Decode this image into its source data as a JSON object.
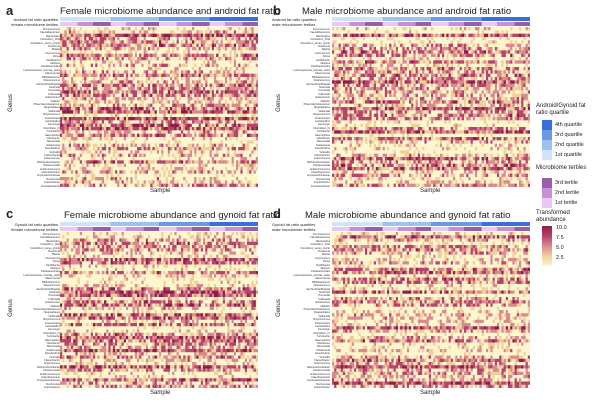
{
  "panels": [
    {
      "letter": "a",
      "title": "Female microbiome abundance and android fat ratio",
      "strip1": "Android fat ratio quartiles",
      "strip2": "female microbiome tertiles",
      "ylabel": "Genus",
      "xlabel": "Sample"
    },
    {
      "letter": "b",
      "title": "Male microbiome abundance and android fat ratio",
      "strip1": "Android fat ratio quartiles",
      "strip2": "male microbiome tertiles",
      "ylabel": "Genus",
      "xlabel": "Sample"
    },
    {
      "letter": "c",
      "title": "Female microbiome abundance and gynoid fat ratio",
      "strip1": "Gynoid fat ratio quartiles",
      "strip2": "female microbiome tertiles",
      "ylabel": "Genus",
      "xlabel": "Sample"
    },
    {
      "letter": "d",
      "title": "Male microbiome abundance and gynoid fat ratio",
      "strip1": "Gynoid fat ratio quartiles",
      "strip2": "male microbiome tertiles",
      "ylabel": "Genus",
      "xlabel": "Sample"
    }
  ],
  "legend": {
    "quartile_title": "Android/Gynoid fat ratio quartile",
    "quartiles": [
      {
        "label": "4th quartile",
        "color": "#3a6fd8"
      },
      {
        "label": "3rd quartile",
        "color": "#6a9ae6"
      },
      {
        "label": "2nd quartile",
        "color": "#9cc2ef"
      },
      {
        "label": "1st quartile",
        "color": "#cfe4f7"
      }
    ],
    "tertile_title": "Microbiome tertiles",
    "tertiles": [
      {
        "label": "3rd tertile",
        "color": "#9a5ea6"
      },
      {
        "label": "2nd tertile",
        "color": "#c98ed6"
      },
      {
        "label": "1st tertile",
        "color": "#ebc8f0"
      }
    ],
    "abundance_title": "Transformed abundance",
    "abundance_ticks": [
      "10.0",
      "7.5",
      "5.0",
      "2.5"
    ],
    "abundance_colors": [
      "#8b1f4a",
      "#b8436a",
      "#d98a8f",
      "#f1cf9c",
      "#fdf6cf"
    ]
  },
  "genus_labels": [
    "Ruminococcus",
    "Faecalibacterium",
    "Bacteroides",
    "Clostridium_XlVa",
    "Clostridium_sensu_stricto",
    "Roseburia",
    "Blautia",
    "Coprococcus",
    "Dorea",
    "Oscillibacter",
    "Alistipes",
    "Parabacteroides",
    "Lachnospiracea_incertae_sedis",
    "Akkermansia",
    "Bifidobacterium",
    "Streptococcus",
    "Escherichia/Shigella",
    "Sutterella",
    "Prevotella",
    "Collinsella",
    "Eubacterium",
    "Dialister",
    "Phascolarctobacterium",
    "Megasphaera",
    "Veillonella",
    "Butyricicoccus",
    "Anaerostipes",
    "Lactobacillus",
    "Gemmiger",
    "Clostridium_IV",
    "Turicibacter",
    "Haemophilus",
    "Odoribacter",
    "Barnesiella",
    "Holdemania",
    "Desulfovibrio",
    "Victivallis",
    "Flavonifractor",
    "Enterococcus",
    "Methanobrevibacter",
    "Paraprevotella",
    "Acidaminococcus",
    "Catenibacterium",
    "Erysipelotrichaceae",
    "Romboutsia",
    "Intestinibacter",
    "Fusicatenibacter",
    "Agathobacter",
    "Subdoligranulum"
  ],
  "chart_data": [
    {
      "type": "heatmap",
      "title": "Female microbiome abundance and android fat ratio",
      "xlabel": "Sample",
      "ylabel": "Genus",
      "value_range": [
        2.5,
        10.0
      ]
    },
    {
      "type": "heatmap",
      "title": "Male microbiome abundance and android fat ratio",
      "xlabel": "Sample",
      "ylabel": "Genus",
      "value_range": [
        2.5,
        10.0
      ]
    },
    {
      "type": "heatmap",
      "title": "Female microbiome abundance and gynoid fat ratio",
      "xlabel": "Sample",
      "ylabel": "Genus",
      "value_range": [
        2.5,
        10.0
      ]
    },
    {
      "type": "heatmap",
      "title": "Male microbiome abundance and gynoid fat ratio",
      "xlabel": "Sample",
      "ylabel": "Genus",
      "value_range": [
        2.5,
        10.0
      ]
    }
  ]
}
